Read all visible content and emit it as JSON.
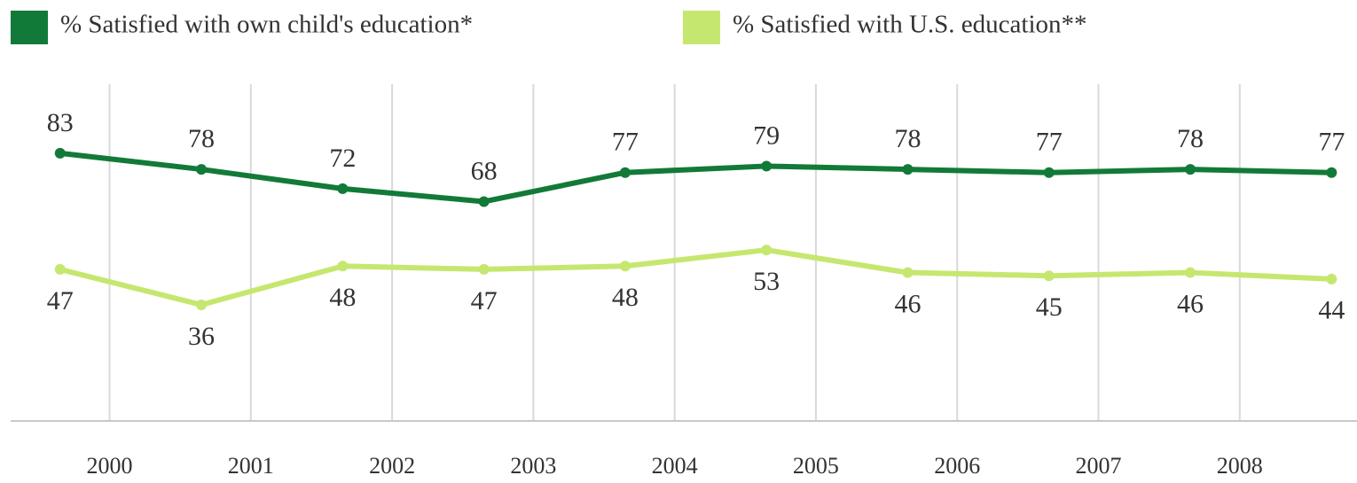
{
  "chart_data": {
    "type": "line",
    "x": [
      1999.65,
      2000.65,
      2001.65,
      2002.65,
      2003.65,
      2004.65,
      2005.65,
      2006.65,
      2007.65,
      2008.65
    ],
    "series": [
      {
        "name": "% Satisfied with own child's education*",
        "color": "#127a38",
        "values": [
          83,
          78,
          72,
          68,
          77,
          79,
          78,
          77,
          78,
          77
        ]
      },
      {
        "name": "% Satisfied with U.S. education**",
        "color": "#c6e76f",
        "values": [
          47,
          36,
          48,
          47,
          48,
          53,
          46,
          45,
          46,
          44
        ]
      }
    ],
    "xlim": [
      1999.3,
      2008.83
    ],
    "xticks": [
      2000,
      2001,
      2002,
      2003,
      2004,
      2005,
      2006,
      2007,
      2008
    ],
    "ylim": [
      0,
      100
    ],
    "grid": true,
    "legend": "top-left"
  }
}
